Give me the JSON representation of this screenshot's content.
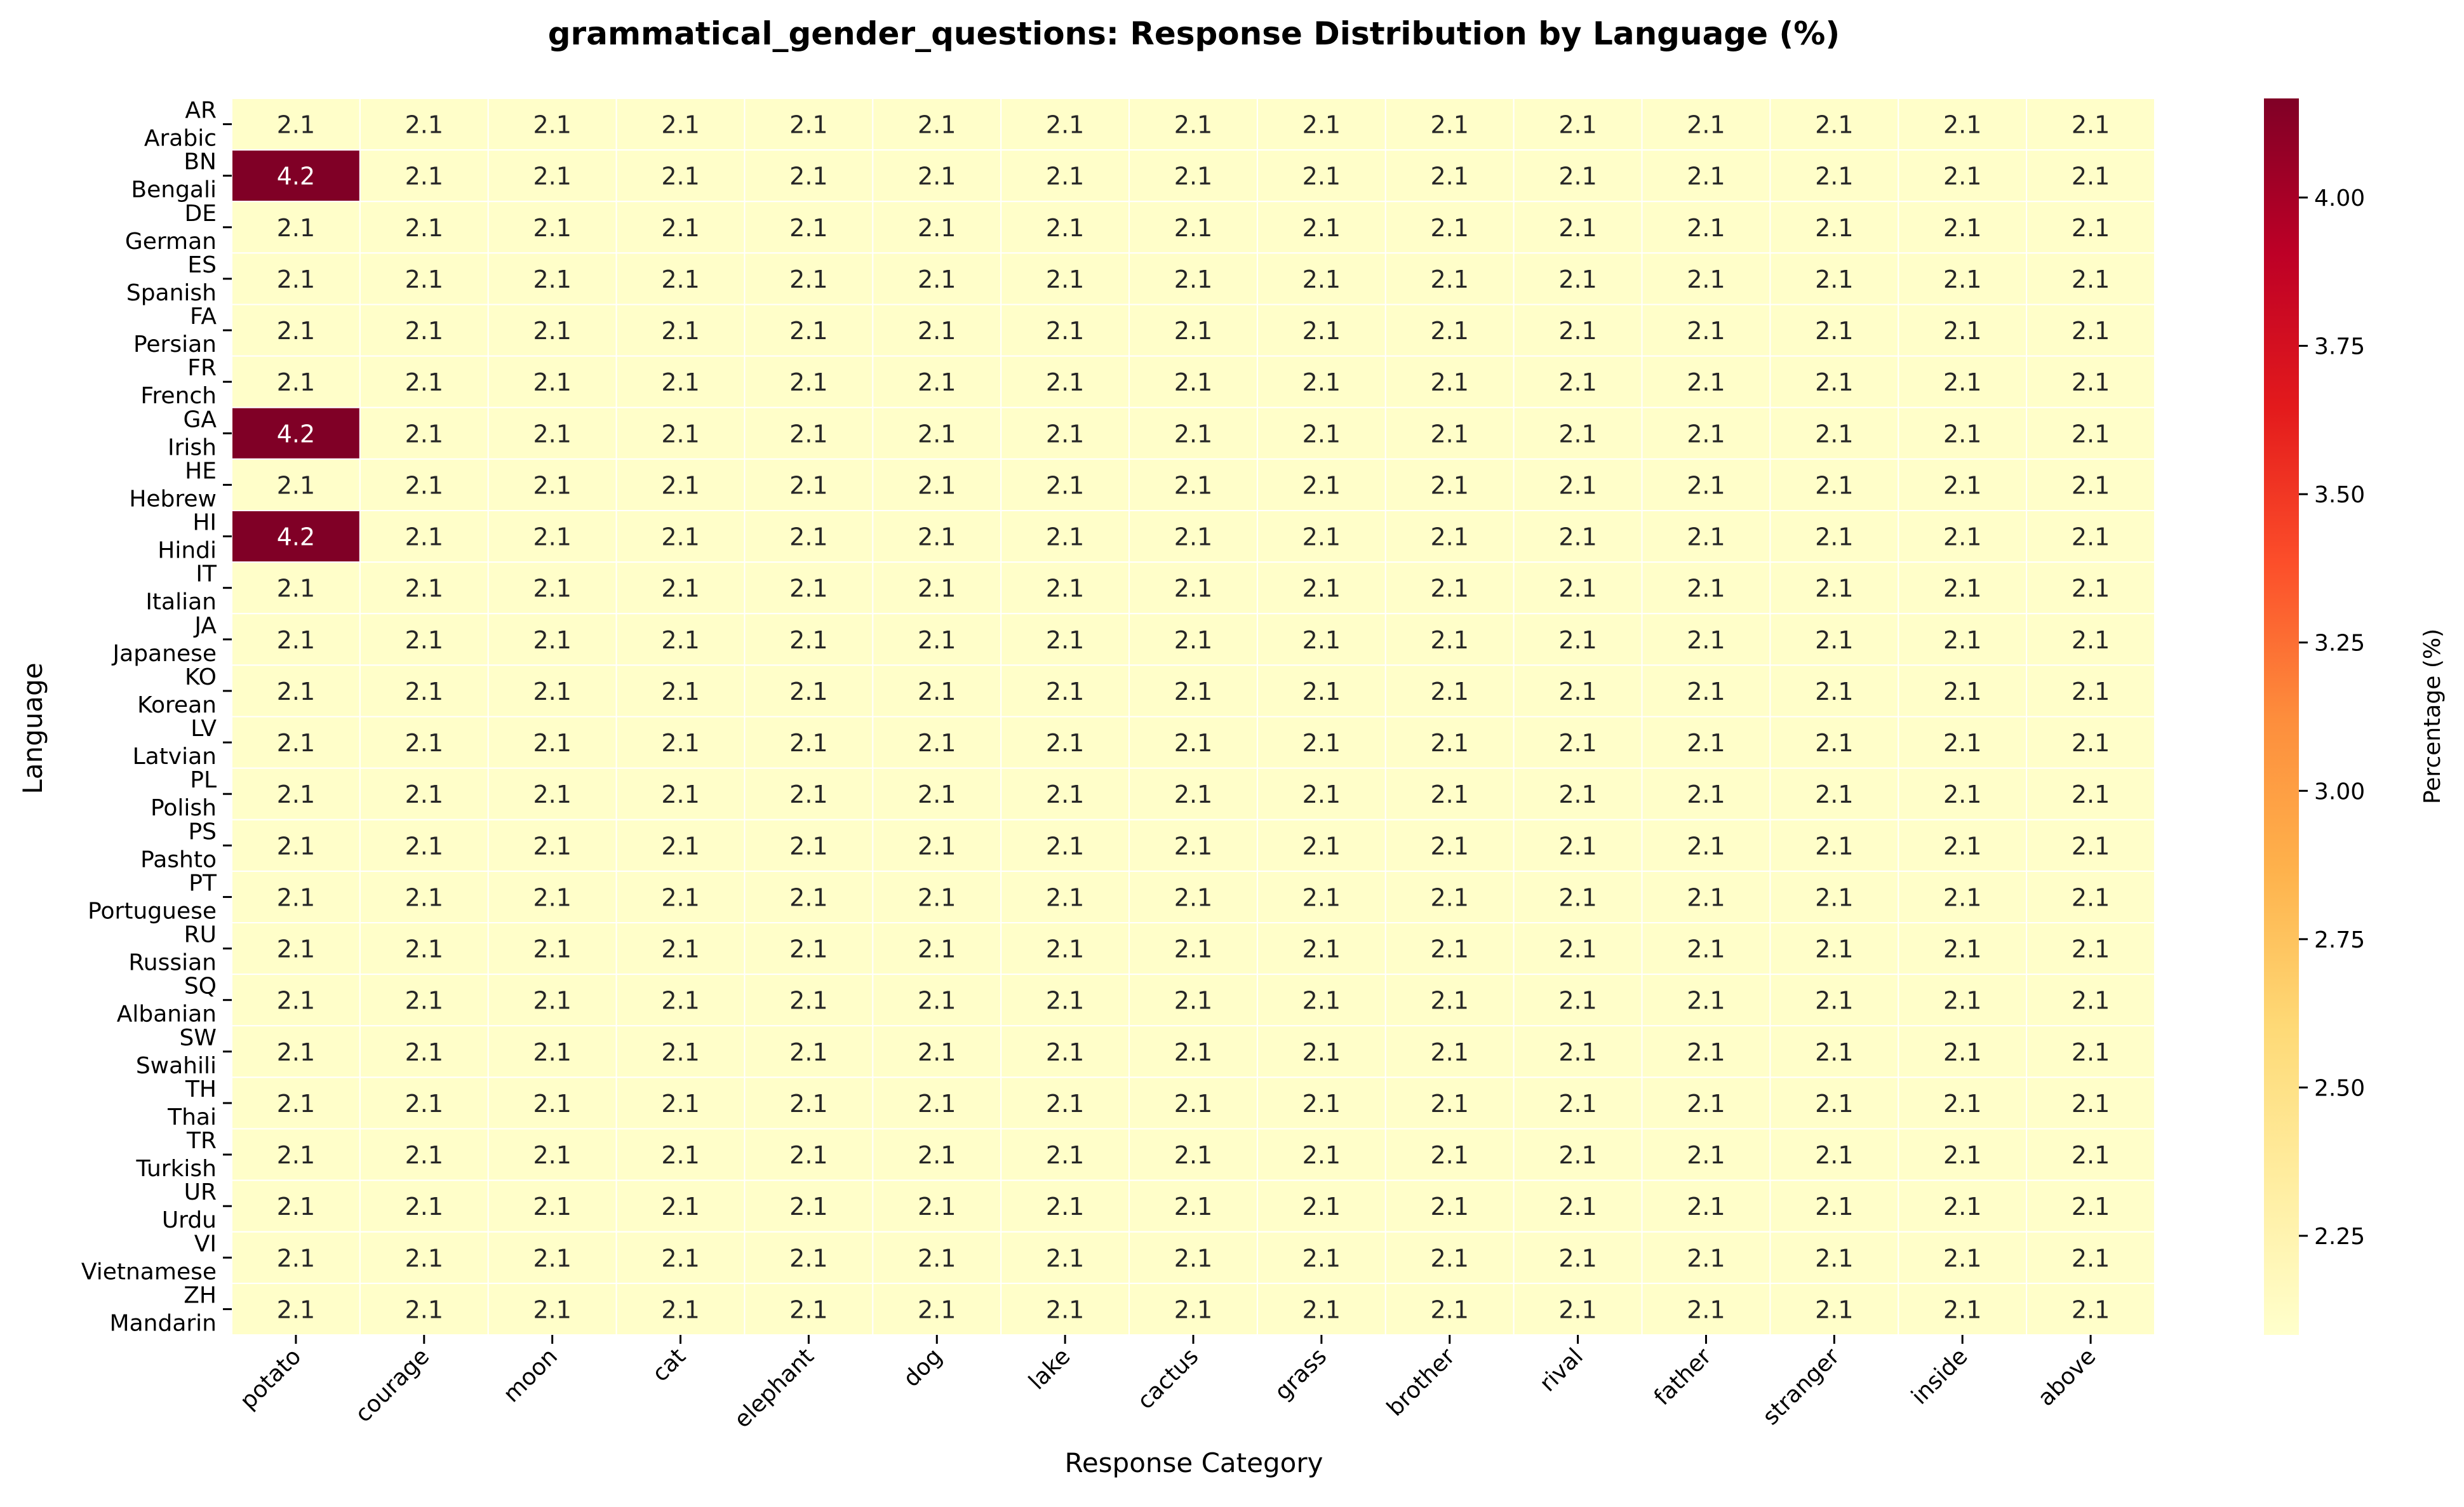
{
  "chart_data": {
    "type": "heatmap",
    "title": "grammatical_gender_questions: Response Distribution by Language (%)",
    "xlabel": "Response Category",
    "ylabel": "Language",
    "colorbar_label": "Percentage (%)",
    "colorbar_ticks": [
      "2.25",
      "2.50",
      "2.75",
      "3.00",
      "3.25",
      "3.50",
      "3.75",
      "4.00"
    ],
    "color_range": [
      2.083,
      4.167
    ],
    "colormap": [
      "#ffffcc",
      "#ffeda0",
      "#fed976",
      "#feb24c",
      "#fd8d3c",
      "#fc4e2a",
      "#e31a1c",
      "#bd0026",
      "#800026"
    ],
    "categories": [
      "potato",
      "courage",
      "moon",
      "cat",
      "elephant",
      "dog",
      "lake",
      "cactus",
      "grass",
      "brother",
      "rival",
      "father",
      "stranger",
      "inside",
      "above"
    ],
    "languages": [
      {
        "code": "AR",
        "name": "Arabic"
      },
      {
        "code": "BN",
        "name": "Bengali"
      },
      {
        "code": "DE",
        "name": "German"
      },
      {
        "code": "ES",
        "name": "Spanish"
      },
      {
        "code": "FA",
        "name": "Persian"
      },
      {
        "code": "FR",
        "name": "French"
      },
      {
        "code": "GA",
        "name": "Irish"
      },
      {
        "code": "HE",
        "name": "Hebrew"
      },
      {
        "code": "HI",
        "name": "Hindi"
      },
      {
        "code": "IT",
        "name": "Italian"
      },
      {
        "code": "JA",
        "name": "Japanese"
      },
      {
        "code": "KO",
        "name": "Korean"
      },
      {
        "code": "LV",
        "name": "Latvian"
      },
      {
        "code": "PL",
        "name": "Polish"
      },
      {
        "code": "PS",
        "name": "Pashto"
      },
      {
        "code": "PT",
        "name": "Portuguese"
      },
      {
        "code": "RU",
        "name": "Russian"
      },
      {
        "code": "SQ",
        "name": "Albanian"
      },
      {
        "code": "SW",
        "name": "Swahili"
      },
      {
        "code": "TH",
        "name": "Thai"
      },
      {
        "code": "TR",
        "name": "Turkish"
      },
      {
        "code": "UR",
        "name": "Urdu"
      },
      {
        "code": "VI",
        "name": "Vietnamese"
      },
      {
        "code": "ZH",
        "name": "Mandarin"
      }
    ],
    "values": [
      [
        2.1,
        2.1,
        2.1,
        2.1,
        2.1,
        2.1,
        2.1,
        2.1,
        2.1,
        2.1,
        2.1,
        2.1,
        2.1,
        2.1,
        2.1
      ],
      [
        4.2,
        2.1,
        2.1,
        2.1,
        2.1,
        2.1,
        2.1,
        2.1,
        2.1,
        2.1,
        2.1,
        2.1,
        2.1,
        2.1,
        2.1
      ],
      [
        2.1,
        2.1,
        2.1,
        2.1,
        2.1,
        2.1,
        2.1,
        2.1,
        2.1,
        2.1,
        2.1,
        2.1,
        2.1,
        2.1,
        2.1
      ],
      [
        2.1,
        2.1,
        2.1,
        2.1,
        2.1,
        2.1,
        2.1,
        2.1,
        2.1,
        2.1,
        2.1,
        2.1,
        2.1,
        2.1,
        2.1
      ],
      [
        2.1,
        2.1,
        2.1,
        2.1,
        2.1,
        2.1,
        2.1,
        2.1,
        2.1,
        2.1,
        2.1,
        2.1,
        2.1,
        2.1,
        2.1
      ],
      [
        2.1,
        2.1,
        2.1,
        2.1,
        2.1,
        2.1,
        2.1,
        2.1,
        2.1,
        2.1,
        2.1,
        2.1,
        2.1,
        2.1,
        2.1
      ],
      [
        4.2,
        2.1,
        2.1,
        2.1,
        2.1,
        2.1,
        2.1,
        2.1,
        2.1,
        2.1,
        2.1,
        2.1,
        2.1,
        2.1,
        2.1
      ],
      [
        2.1,
        2.1,
        2.1,
        2.1,
        2.1,
        2.1,
        2.1,
        2.1,
        2.1,
        2.1,
        2.1,
        2.1,
        2.1,
        2.1,
        2.1
      ],
      [
        4.2,
        2.1,
        2.1,
        2.1,
        2.1,
        2.1,
        2.1,
        2.1,
        2.1,
        2.1,
        2.1,
        2.1,
        2.1,
        2.1,
        2.1
      ],
      [
        2.1,
        2.1,
        2.1,
        2.1,
        2.1,
        2.1,
        2.1,
        2.1,
        2.1,
        2.1,
        2.1,
        2.1,
        2.1,
        2.1,
        2.1
      ],
      [
        2.1,
        2.1,
        2.1,
        2.1,
        2.1,
        2.1,
        2.1,
        2.1,
        2.1,
        2.1,
        2.1,
        2.1,
        2.1,
        2.1,
        2.1
      ],
      [
        2.1,
        2.1,
        2.1,
        2.1,
        2.1,
        2.1,
        2.1,
        2.1,
        2.1,
        2.1,
        2.1,
        2.1,
        2.1,
        2.1,
        2.1
      ],
      [
        2.1,
        2.1,
        2.1,
        2.1,
        2.1,
        2.1,
        2.1,
        2.1,
        2.1,
        2.1,
        2.1,
        2.1,
        2.1,
        2.1,
        2.1
      ],
      [
        2.1,
        2.1,
        2.1,
        2.1,
        2.1,
        2.1,
        2.1,
        2.1,
        2.1,
        2.1,
        2.1,
        2.1,
        2.1,
        2.1,
        2.1
      ],
      [
        2.1,
        2.1,
        2.1,
        2.1,
        2.1,
        2.1,
        2.1,
        2.1,
        2.1,
        2.1,
        2.1,
        2.1,
        2.1,
        2.1,
        2.1
      ],
      [
        2.1,
        2.1,
        2.1,
        2.1,
        2.1,
        2.1,
        2.1,
        2.1,
        2.1,
        2.1,
        2.1,
        2.1,
        2.1,
        2.1,
        2.1
      ],
      [
        2.1,
        2.1,
        2.1,
        2.1,
        2.1,
        2.1,
        2.1,
        2.1,
        2.1,
        2.1,
        2.1,
        2.1,
        2.1,
        2.1,
        2.1
      ],
      [
        2.1,
        2.1,
        2.1,
        2.1,
        2.1,
        2.1,
        2.1,
        2.1,
        2.1,
        2.1,
        2.1,
        2.1,
        2.1,
        2.1,
        2.1
      ],
      [
        2.1,
        2.1,
        2.1,
        2.1,
        2.1,
        2.1,
        2.1,
        2.1,
        2.1,
        2.1,
        2.1,
        2.1,
        2.1,
        2.1,
        2.1
      ],
      [
        2.1,
        2.1,
        2.1,
        2.1,
        2.1,
        2.1,
        2.1,
        2.1,
        2.1,
        2.1,
        2.1,
        2.1,
        2.1,
        2.1,
        2.1
      ],
      [
        2.1,
        2.1,
        2.1,
        2.1,
        2.1,
        2.1,
        2.1,
        2.1,
        2.1,
        2.1,
        2.1,
        2.1,
        2.1,
        2.1,
        2.1
      ],
      [
        2.1,
        2.1,
        2.1,
        2.1,
        2.1,
        2.1,
        2.1,
        2.1,
        2.1,
        2.1,
        2.1,
        2.1,
        2.1,
        2.1,
        2.1
      ],
      [
        2.1,
        2.1,
        2.1,
        2.1,
        2.1,
        2.1,
        2.1,
        2.1,
        2.1,
        2.1,
        2.1,
        2.1,
        2.1,
        2.1,
        2.1
      ],
      [
        2.1,
        2.1,
        2.1,
        2.1,
        2.1,
        2.1,
        2.1,
        2.1,
        2.1,
        2.1,
        2.1,
        2.1,
        2.1,
        2.1,
        2.1
      ]
    ]
  }
}
